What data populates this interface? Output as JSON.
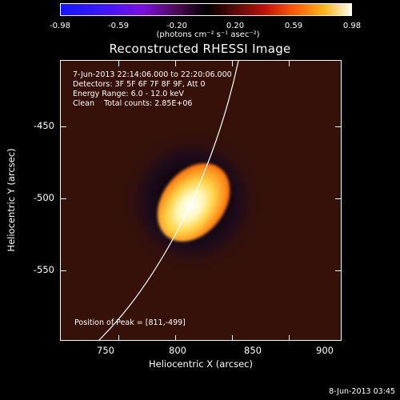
{
  "colorbar": {
    "ticks": [
      "-0.98",
      "-0.59",
      "-0.20",
      "0.20",
      "0.59",
      "0.98"
    ],
    "units": "(photons cm⁻² s⁻¹ asec⁻²)"
  },
  "title": "Reconstructed RHESSI Image",
  "info": {
    "time_range": "7-Jun-2013 22:14:06.000 to 22:20:06.000",
    "detectors": "Detectors: 3F 5F 6F 7F 8F 9F, Att 0",
    "energy": "Energy Range: 6.0 - 12.0 keV",
    "clean": "Clean    Total counts: 2.85E+06",
    "peak": "Position of Peak = [811,-499]"
  },
  "axes": {
    "x_label": "Heliocentric X (arcsec)",
    "y_label": "Heliocentric Y (arcsec)",
    "x_ticks": [
      "750",
      "800",
      "850",
      "900"
    ],
    "y_ticks": [
      "-450",
      "-500",
      "-550"
    ]
  },
  "timestamp": "8-Jun-2013 03:45",
  "colors": {
    "background": "#000000",
    "limb_line": "#ffffff"
  }
}
